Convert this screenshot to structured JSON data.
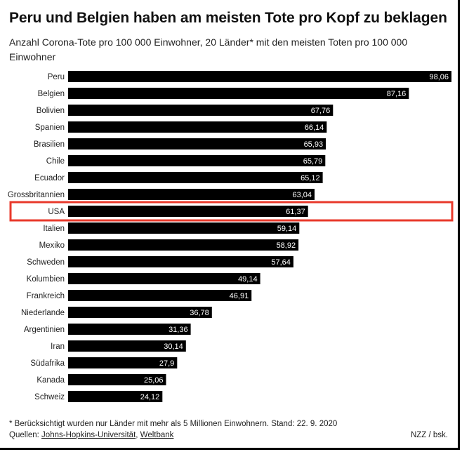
{
  "header": {
    "title": "Peru und Belgien haben am meisten Tote pro Kopf zu beklagen",
    "subtitle": "Anzahl Corona-Tote pro 100 000 Einwohner, 20 Länder* mit den meisten Toten pro 100 000 Einwohner"
  },
  "chart_data": {
    "type": "bar",
    "orientation": "horizontal",
    "title": "Peru und Belgien haben am meisten Tote pro Kopf zu beklagen",
    "subtitle": "Anzahl Corona-Tote pro 100 000 Einwohner, 20 Länder* mit den meisten Toten pro 100 000 Einwohner",
    "categories": [
      "Peru",
      "Belgien",
      "Bolivien",
      "Spanien",
      "Brasilien",
      "Chile",
      "Ecuador",
      "Grossbritannien",
      "USA",
      "Italien",
      "Mexiko",
      "Schweden",
      "Kolumbien",
      "Frankreich",
      "Niederlande",
      "Argentinien",
      "Iran",
      "Südafrika",
      "Kanada",
      "Schweiz"
    ],
    "values": [
      98.06,
      87.16,
      67.76,
      66.14,
      65.93,
      65.79,
      65.12,
      63.04,
      61.37,
      59.14,
      58.92,
      57.64,
      49.14,
      46.91,
      36.78,
      31.36,
      30.14,
      27.9,
      25.06,
      24.12
    ],
    "value_labels": [
      "98,06",
      "87,16",
      "67,76",
      "66,14",
      "65,93",
      "65,79",
      "65,12",
      "63,04",
      "61,37",
      "59,14",
      "58,92",
      "57,64",
      "49,14",
      "46,91",
      "36,78",
      "31,36",
      "30,14",
      "27,9",
      "25,06",
      "24,12"
    ],
    "highlighted_category": "USA",
    "xlim": [
      0,
      98.06
    ],
    "grid": false,
    "legend": "none",
    "colors": {
      "bar": "#000000",
      "bar_label": "#ffffff",
      "highlight": "#e8392b",
      "category_label": "#222222"
    }
  },
  "footer": {
    "footnote": "* Berücksichtigt wurden nur Länder mit mehr als 5 Millionen Einwohnern. Stand: 22. 9. 2020",
    "sources_label": "Quellen:",
    "source_1": "Johns-Hopkins-Universität",
    "separator": ",",
    "source_2": "Weltbank",
    "credit": "NZZ / bsk."
  }
}
